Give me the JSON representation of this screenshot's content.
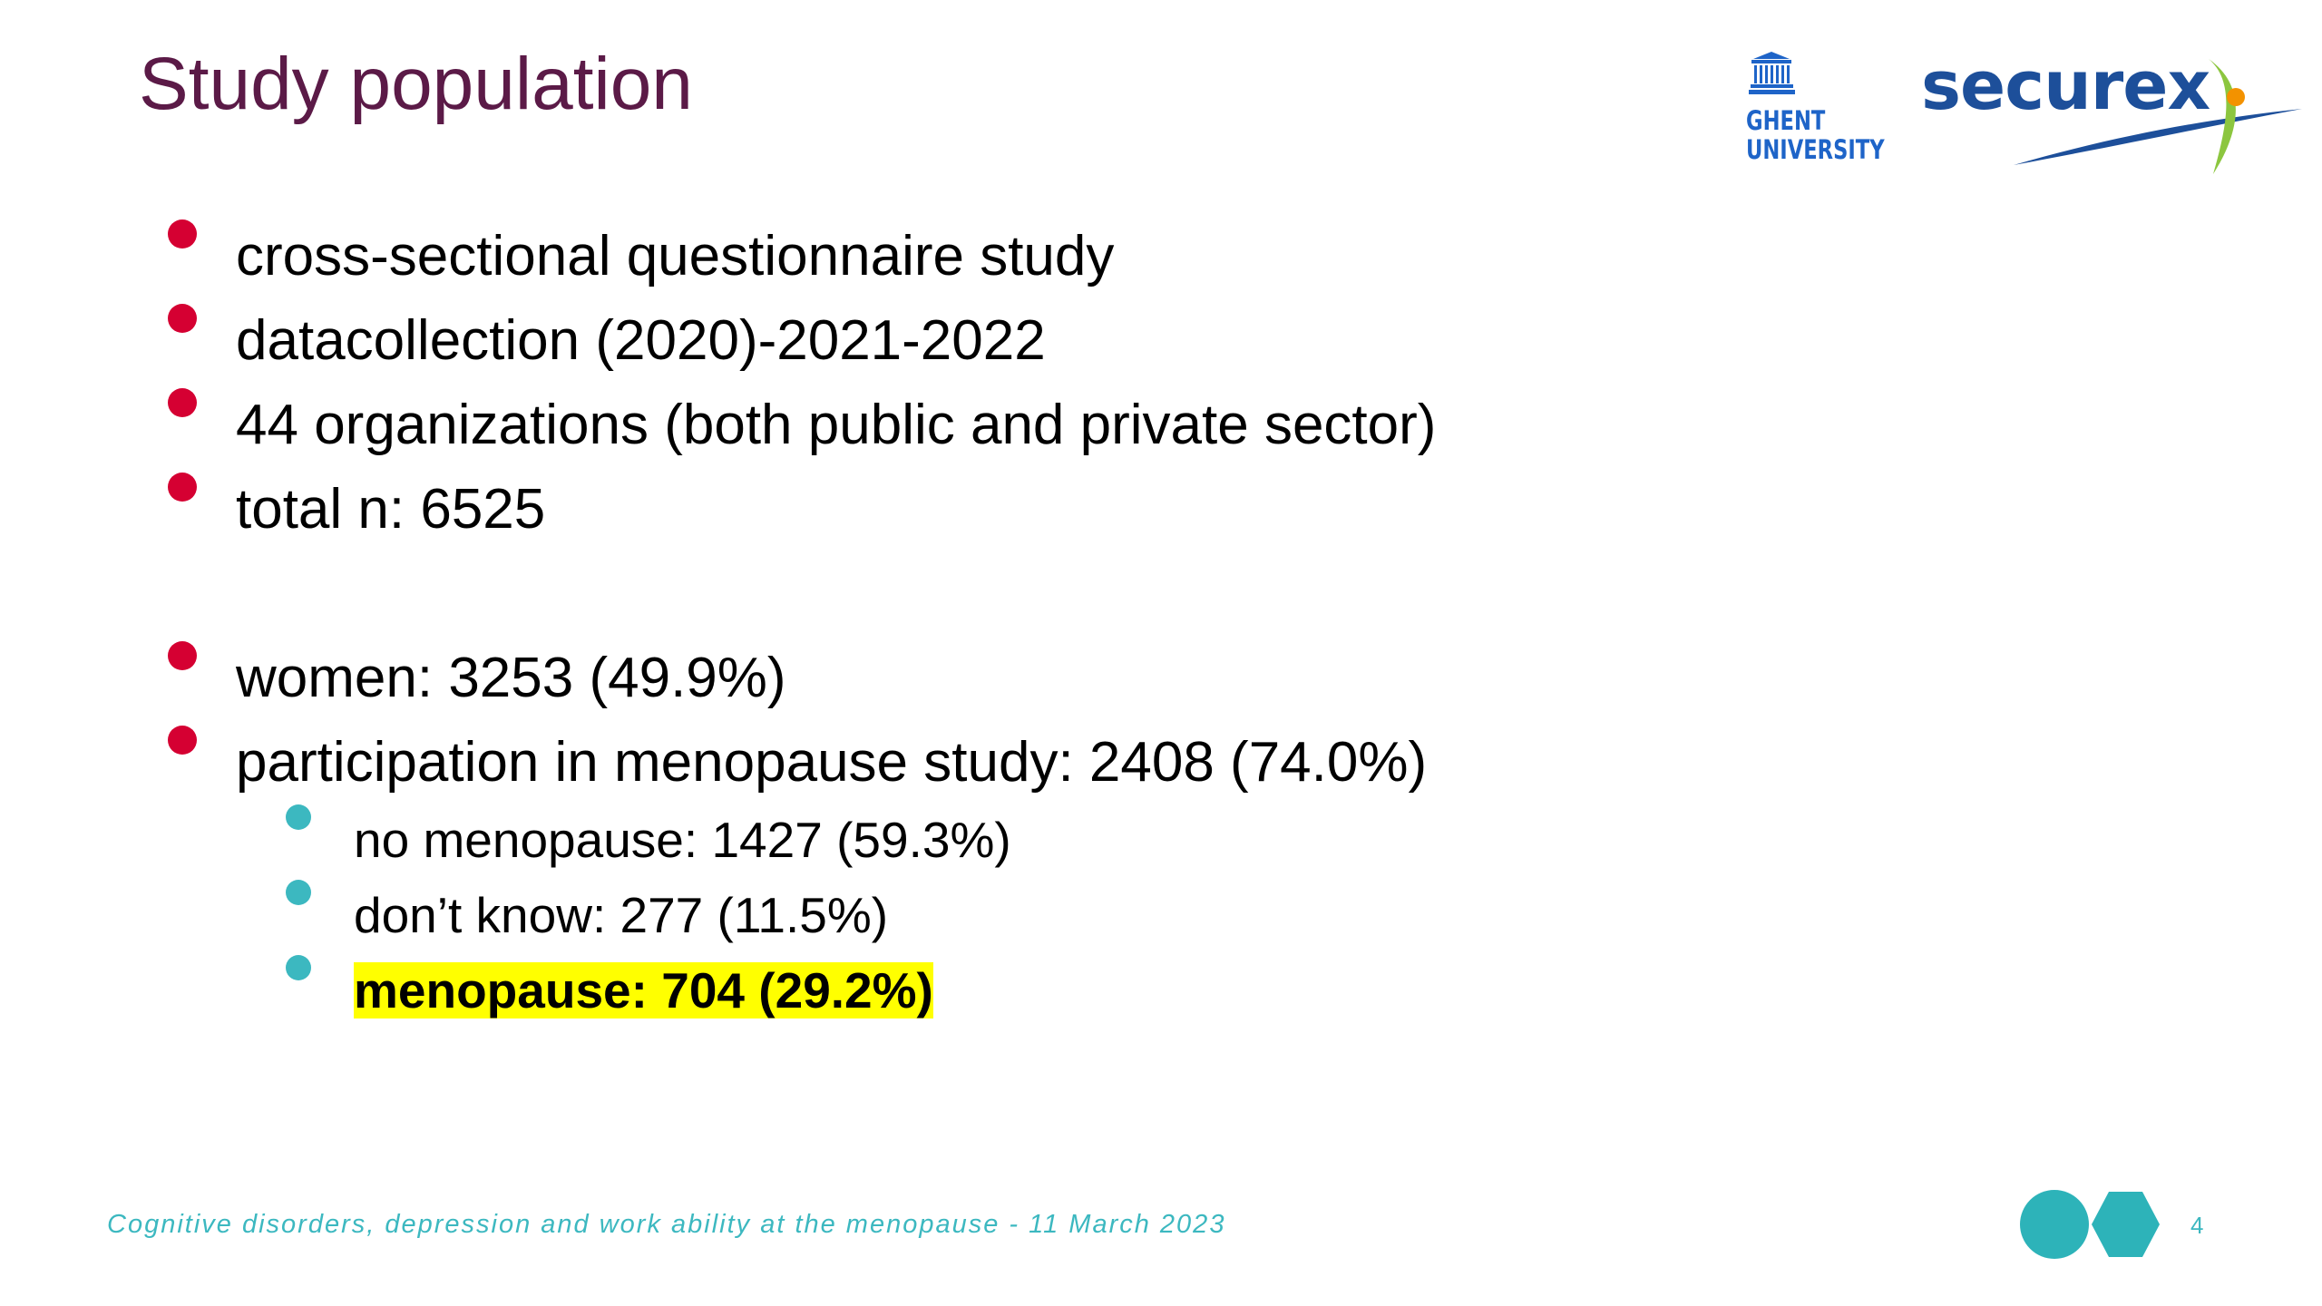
{
  "slide": {
    "title": "Study population",
    "bullets": [
      "cross-sectional questionnaire study",
      "datacollection (2020)-2021-2022",
      "44 organizations (both public and private sector)",
      "total n: 6525",
      "women: 3253 (49.9%)",
      "participation in menopause study: 2408 (74.0%)"
    ],
    "sub_bullets": [
      "no menopause: 1427 (59.3%)",
      "don’t know: 277 (11.5%)",
      "menopause: 704 (29.2%)"
    ]
  },
  "logos": {
    "ghent_line1": "GHENT",
    "ghent_line2": "UNIVERSITY",
    "securex": "securex"
  },
  "footer": {
    "text": "Cognitive disorders, depression and work ability at the menopause  - 11 March 2023",
    "page_number": "4"
  },
  "colors": {
    "title": "#5b1a47",
    "bullet_primary": "#d50032",
    "bullet_secondary": "#3cb8c0",
    "highlight": "#ffff00",
    "footer": "#3cb8c0",
    "ghent_blue": "#1e64c8",
    "securex_blue": "#1d4f9a"
  }
}
